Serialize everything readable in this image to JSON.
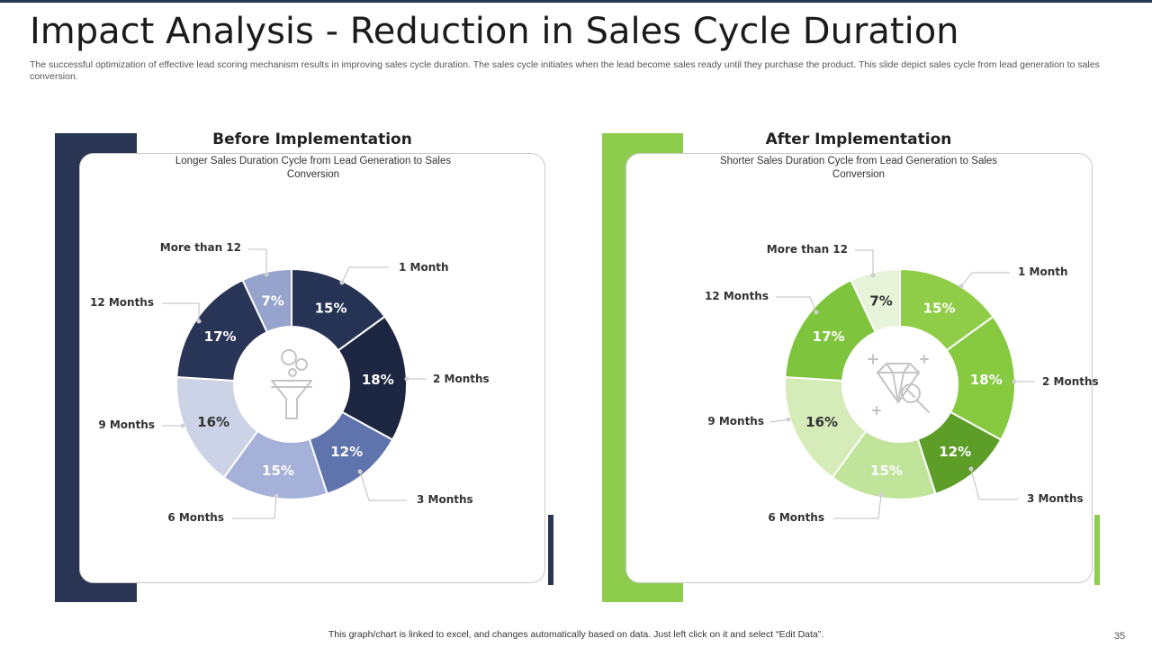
{
  "header": {
    "title": "Impact Analysis - Reduction in Sales Cycle Duration",
    "subtitle": "The successful optimization of effective lead scoring mechanism results in improving sales cycle duration. The sales cycle initiates when the lead become sales ready until they purchase the product. This slide depict sales cycle from lead generation to sales conversion."
  },
  "chart_data": [
    {
      "type": "pie",
      "title": "Before Implementation",
      "subtitle": "Longer Sales Duration Cycle from Lead Generation to Sales Conversion",
      "categories": [
        "1 Month",
        "2 Months",
        "3 Months",
        "6 Months",
        "9 Months",
        "12 Months",
        "More than 12"
      ],
      "values": [
        15,
        18,
        12,
        15,
        16,
        17,
        7
      ],
      "value_labels": [
        "15%",
        "18%",
        "12%",
        "15%",
        "16%",
        "17%",
        "7%"
      ],
      "colors": [
        "#263354",
        "#1d2641",
        "#5f74ad",
        "#a5b1d8",
        "#ccd3e6",
        "#283557",
        "#96a3cc"
      ],
      "center_icon": "funnel-icon",
      "legend": "callout-labels"
    },
    {
      "type": "pie",
      "title": "After Implementation",
      "subtitle": "Shorter Sales Duration Cycle from Lead Generation to Sales Conversion",
      "categories": [
        "1 Month",
        "2 Months",
        "3 Months",
        "6 Months",
        "9 Months",
        "12 Months",
        "More than 12"
      ],
      "values": [
        15,
        18,
        12,
        15,
        16,
        17,
        7
      ],
      "value_labels": [
        "15%",
        "18%",
        "12%",
        "15%",
        "16%",
        "17%",
        "7%"
      ],
      "colors": [
        "#8fcc47",
        "#87c93f",
        "#5c9e28",
        "#c0e49a",
        "#d5ecb9",
        "#7ec43c",
        "#e8f4da"
      ],
      "center_icon": "diamond-magnifier-icon",
      "legend": "callout-labels"
    }
  ],
  "footer": {
    "note": "This graph/chart is linked to excel, and changes automatically based on data. Just left click on it and select “Edit Data”.",
    "page_number": "35"
  },
  "theme": {
    "navy": "#2a3553",
    "green": "#8dcc4d"
  }
}
